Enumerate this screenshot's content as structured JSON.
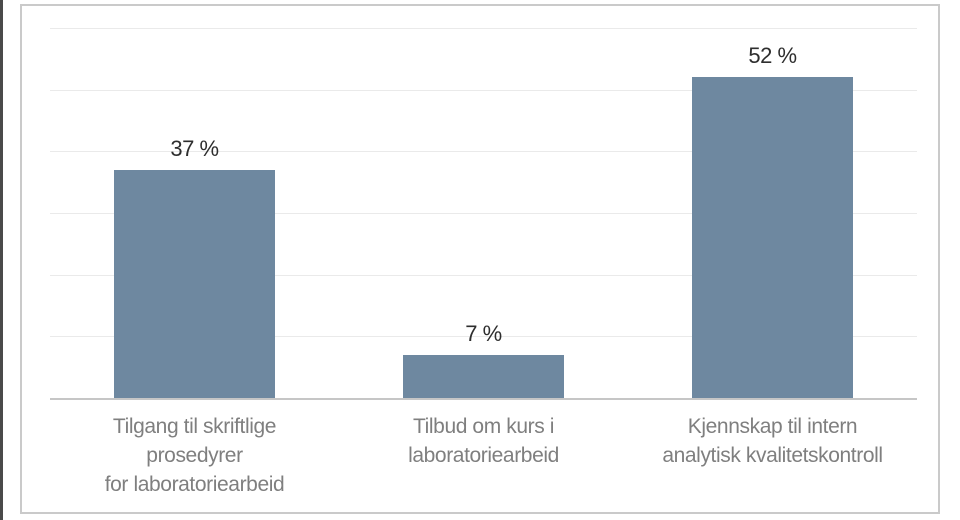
{
  "chart_data": {
    "type": "bar",
    "title": "",
    "xlabel": "",
    "ylabel": "",
    "categories": [
      "Tilgang til skriftlige prosedyrer for laboratoriearbeid",
      "Tilbud om kurs i laboratoriearbeid",
      "Kjennskap til intern analytisk kvalitetskontroll"
    ],
    "category_label_lines": [
      [
        "Tilgang til skriftlige",
        "prosedyrer",
        "for laboratoriearbeid"
      ],
      [
        "Tilbud om kurs i",
        "laboratoriearbeid"
      ],
      [
        "Kjennskap til intern",
        "analytisk kvalitetskontroll"
      ]
    ],
    "values": [
      37,
      7,
      52
    ],
    "value_labels": [
      "37 %",
      "7 %",
      "52 %"
    ],
    "ylim": [
      0,
      60
    ],
    "gridline_step": 10,
    "grid": true,
    "legend": false,
    "y_tick_labels_visible": false
  },
  "colors": {
    "bar": "#6e88a0",
    "gridline": "#eaeaea",
    "axis_line": "#c6c6c6",
    "frame_border": "#cacaca",
    "value_text": "#2e2e2e",
    "category_text": "#7f7f7f",
    "background": "#ffffff",
    "scan_edge": "#4a4a4a"
  }
}
